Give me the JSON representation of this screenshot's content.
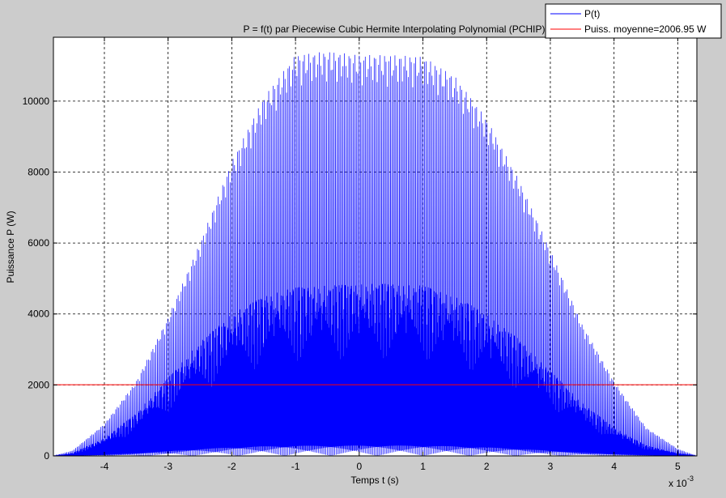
{
  "chart_data": {
    "type": "line",
    "title": "P = f(t) par Piecewise Cubic Hermite Interpolating Polynomial (PCHIP)",
    "xlabel": "Temps t (s)",
    "ylabel": "Puissance P (W)",
    "x_exponent_label": "x 10",
    "x_exponent_power": "-3",
    "xlim": [
      -4.8,
      5.3
    ],
    "ylim": [
      0,
      11800
    ],
    "xticks": [
      -4,
      -3,
      -2,
      -1,
      0,
      1,
      2,
      3,
      4,
      5
    ],
    "xtick_labels": [
      "-4",
      "-3",
      "-2",
      "-1",
      "0",
      "1",
      "2",
      "3",
      "4",
      "5"
    ],
    "yticks": [
      0,
      2000,
      4000,
      6000,
      8000,
      10000
    ],
    "ytick_labels": [
      "0",
      "2000",
      "4000",
      "6000",
      "8000",
      "10000"
    ],
    "grid": true,
    "legend_position": "top-right",
    "series": [
      {
        "name": "P(t)",
        "color": "#0000ff",
        "description": "Densely oscillating power signal; upper envelope peaks near 11500 W around t=-1e-3..1e-3, secondary band near 4800 W",
        "envelope_t": [
          -4.8,
          -4.5,
          -4.0,
          -3.5,
          -3.0,
          -2.5,
          -2.0,
          -1.5,
          -1.0,
          -0.5,
          0.0,
          0.5,
          1.0,
          1.5,
          2.0,
          2.5,
          3.0,
          3.5,
          4.0,
          4.5,
          5.0,
          5.3
        ],
        "envelope_p": [
          0,
          150,
          900,
          2100,
          3900,
          6000,
          8300,
          10100,
          11300,
          11400,
          11300,
          11300,
          11250,
          10700,
          9500,
          7800,
          5800,
          3700,
          2100,
          800,
          200,
          0
        ],
        "mid_envelope_p": [
          0,
          80,
          500,
          1200,
          2200,
          3200,
          4000,
          4500,
          4750,
          4800,
          4850,
          4850,
          4800,
          4500,
          4000,
          3300,
          2400,
          1500,
          800,
          300,
          80,
          0
        ]
      },
      {
        "name": "Puiss. moyenne=2006.95 W",
        "color": "#ff0000",
        "value": 2006.95
      }
    ]
  }
}
